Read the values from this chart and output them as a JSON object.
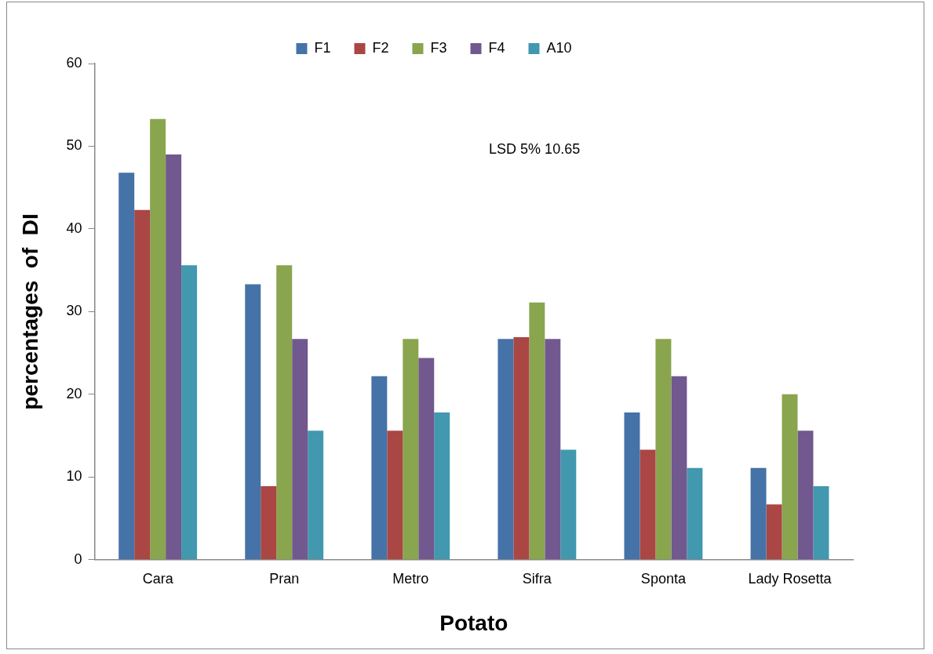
{
  "chart_data": {
    "type": "bar",
    "xlabel": "Potato",
    "ylabel": "percentages  of  DI",
    "categories": [
      "Cara",
      "Pran",
      "Metro",
      "Sifra",
      "Sponta",
      "Lady Rosetta"
    ],
    "series": [
      {
        "name": "F1",
        "color": "#4572a7",
        "values": [
          46.8,
          33.3,
          22.2,
          26.7,
          17.8,
          11.1
        ]
      },
      {
        "name": "F2",
        "color": "#aa4643",
        "values": [
          42.3,
          8.9,
          15.6,
          26.9,
          13.3,
          6.7
        ]
      },
      {
        "name": "F3",
        "color": "#89a54e",
        "values": [
          53.3,
          35.6,
          26.7,
          31.1,
          26.7,
          20.0
        ]
      },
      {
        "name": "F4",
        "color": "#71588f",
        "values": [
          49.0,
          26.7,
          24.4,
          26.7,
          22.2,
          15.6
        ]
      },
      {
        "name": "A10",
        "color": "#4198af",
        "values": [
          35.6,
          15.6,
          17.8,
          13.3,
          11.1,
          8.9
        ]
      }
    ],
    "ylim": [
      0,
      60
    ],
    "yticks": [
      0,
      10,
      20,
      30,
      40,
      50,
      60
    ],
    "grid": false,
    "legend": "top",
    "annotations": [
      "LSD 5% 10.65"
    ]
  }
}
